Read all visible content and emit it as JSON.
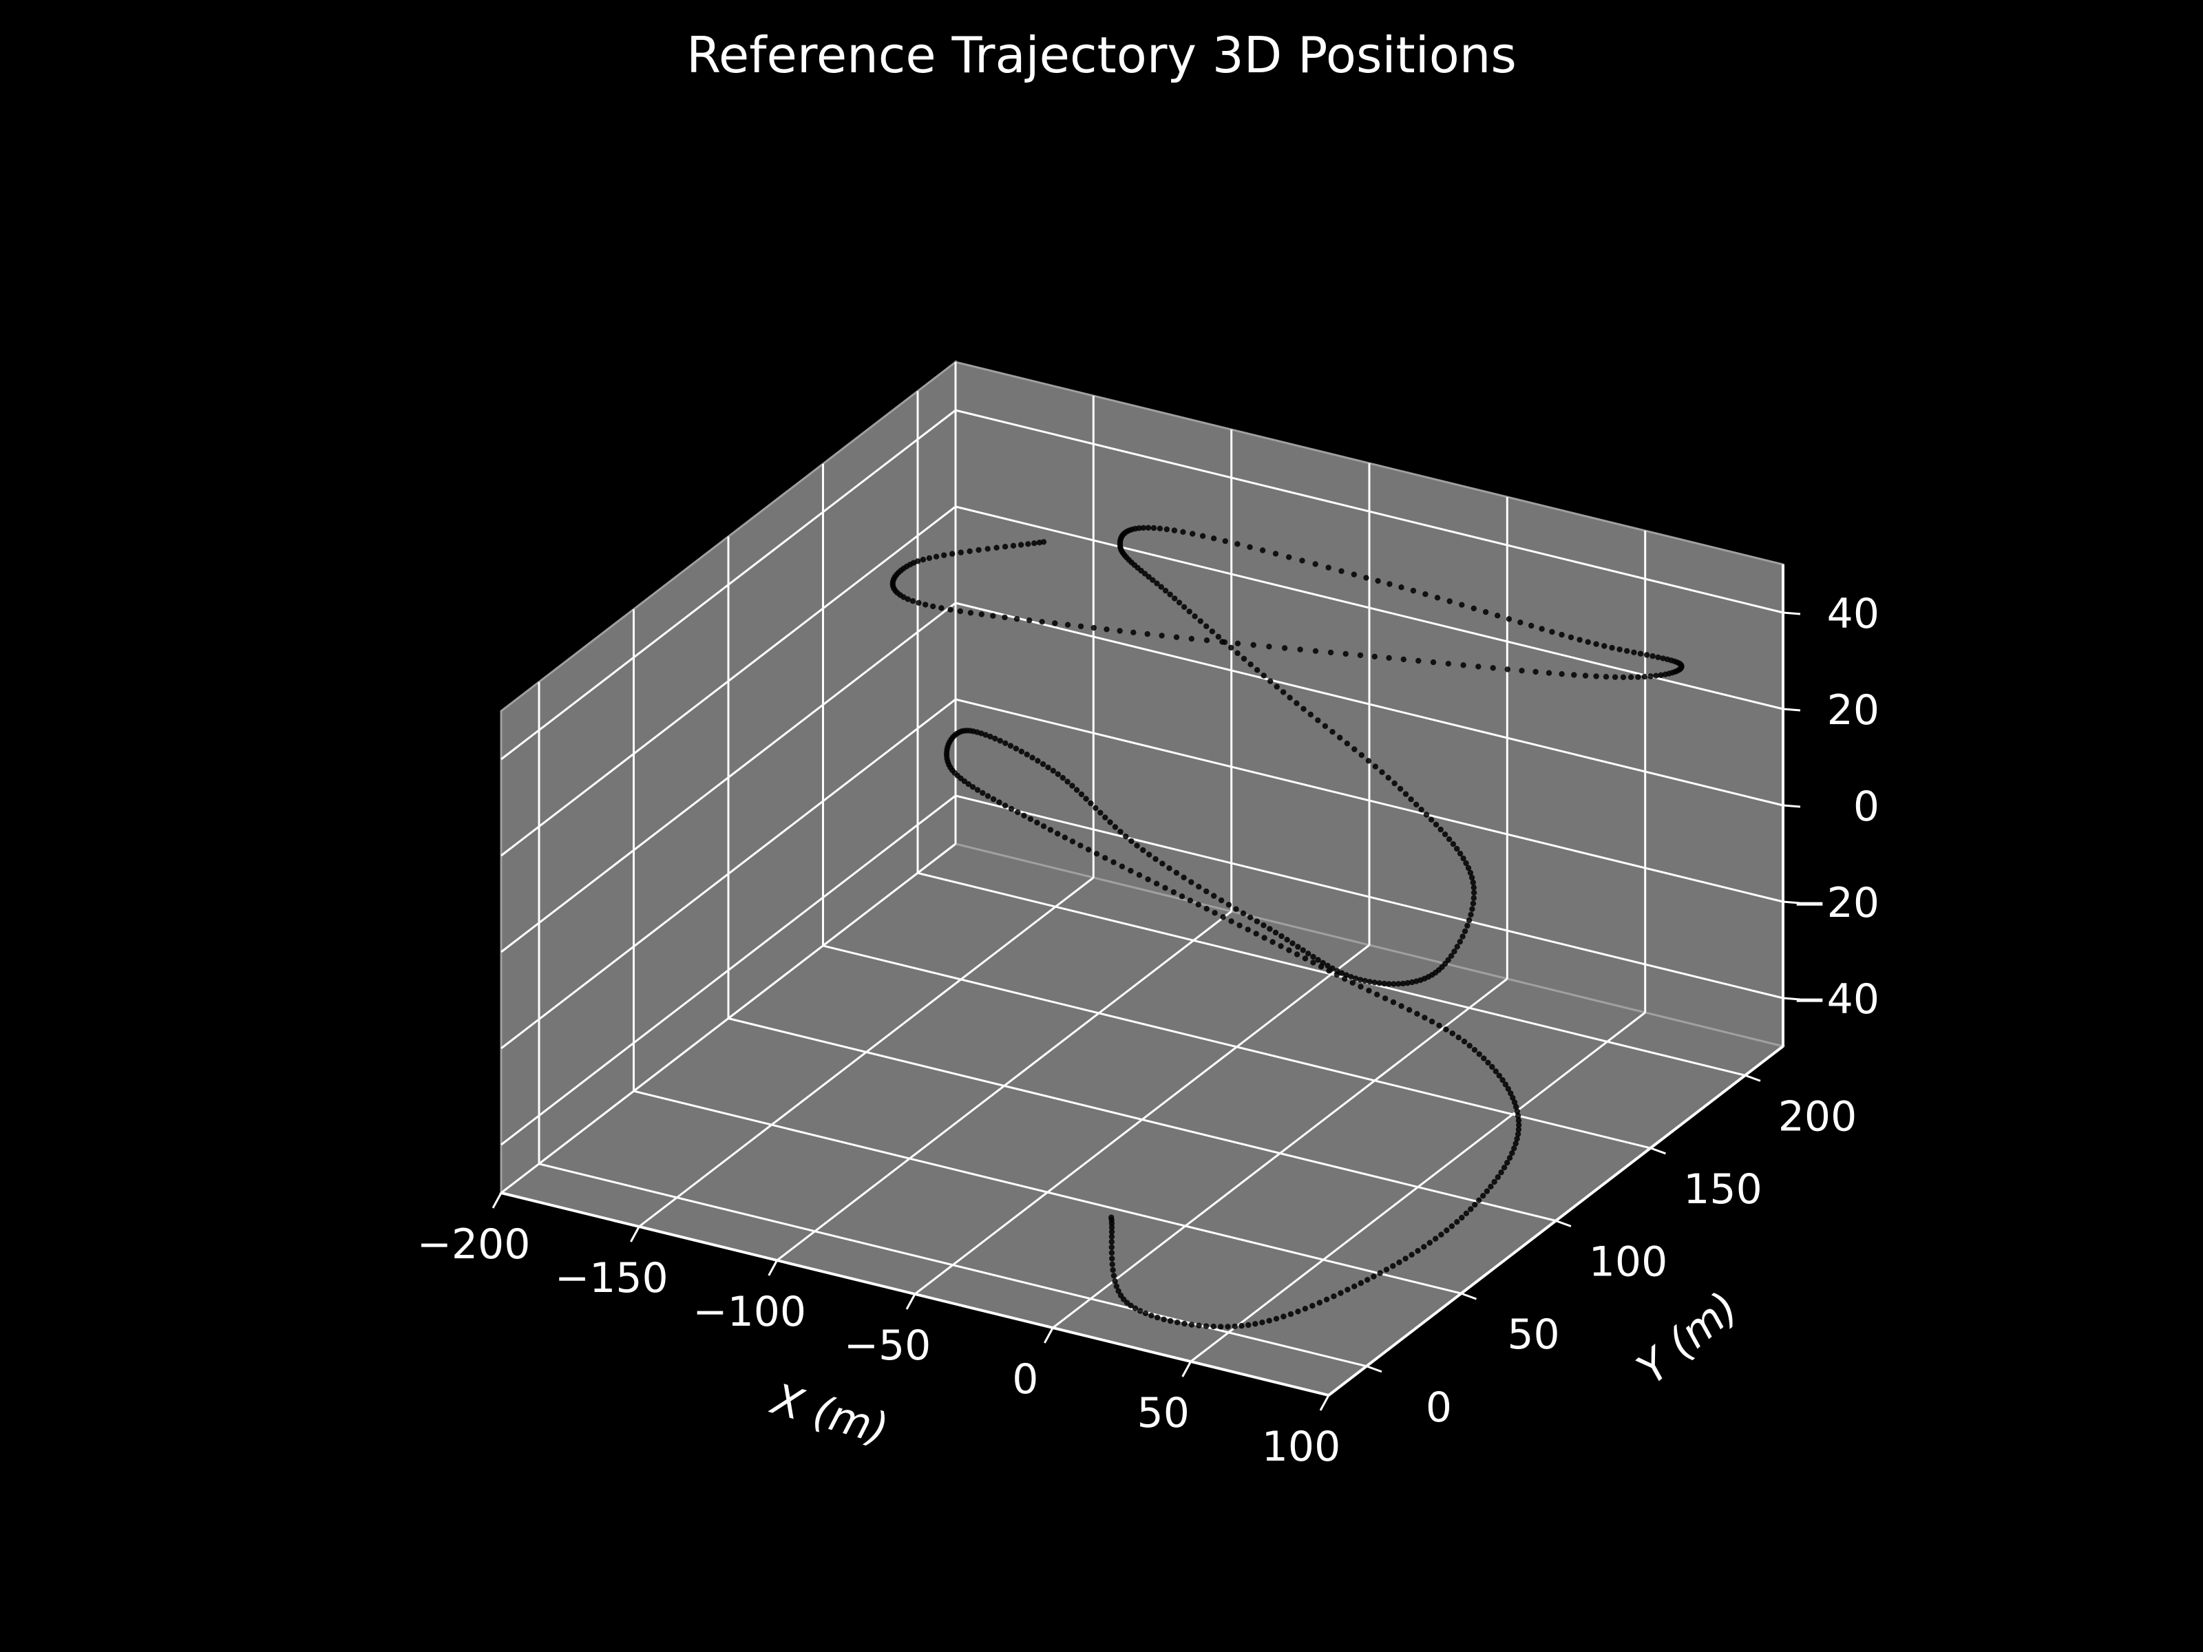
{
  "chart_data": {
    "type": "scatter",
    "projection": "3d",
    "title": "Reference Trajectory 3D Positions",
    "xlabel": "X (m)",
    "ylabel": "Y (m)",
    "zlabel": "",
    "xlim": [
      -200,
      100
    ],
    "ylim": [
      -20,
      220
    ],
    "zlim": [
      -50,
      50
    ],
    "xticks": [
      -200,
      -150,
      -100,
      -50,
      0,
      50,
      100
    ],
    "yticks": [
      0,
      50,
      100,
      150,
      200
    ],
    "zticks": [
      -40,
      -20,
      0,
      20,
      40
    ],
    "x_tick_labels": [
      "−200",
      "−150",
      "−100",
      "−50",
      "0",
      "50",
      "100"
    ],
    "y_tick_labels": [
      "0",
      "50",
      "100",
      "150",
      "200"
    ],
    "z_tick_labels": [
      "−40",
      "−20",
      "0",
      "20",
      "40"
    ],
    "grid": true,
    "pane_color": "#767676",
    "grid_color": "#ffffff",
    "background_color": "#000000",
    "marker_color": "#000000",
    "series": [
      {
        "trajectory_key_points": [
          {
            "x": -20,
            "y": 40,
            "z": -48
          },
          {
            "x": 20,
            "y": -10,
            "z": -45
          },
          {
            "x": 65,
            "y": -15,
            "z": -42
          },
          {
            "x": 90,
            "y": 15,
            "z": -38
          },
          {
            "x": 100,
            "y": 55,
            "z": -34
          },
          {
            "x": 90,
            "y": 95,
            "z": -30
          },
          {
            "x": 55,
            "y": 120,
            "z": -26
          },
          {
            "x": 0,
            "y": 130,
            "z": -22
          },
          {
            "x": -60,
            "y": 140,
            "z": -18
          },
          {
            "x": -120,
            "y": 150,
            "z": -14
          },
          {
            "x": -160,
            "y": 160,
            "z": -11
          },
          {
            "x": -165,
            "y": 175,
            "z": -8
          },
          {
            "x": -120,
            "y": 155,
            "z": -4
          },
          {
            "x": -60,
            "y": 115,
            "z": 0
          },
          {
            "x": 10,
            "y": 80,
            "z": 4
          },
          {
            "x": 60,
            "y": 55,
            "z": 8
          },
          {
            "x": 85,
            "y": 60,
            "z": 12
          },
          {
            "x": 70,
            "y": 100,
            "z": 16
          },
          {
            "x": 25,
            "y": 130,
            "z": 19
          },
          {
            "x": -40,
            "y": 160,
            "z": 22
          },
          {
            "x": -100,
            "y": 190,
            "z": 24
          },
          {
            "x": -130,
            "y": 205,
            "z": 26
          },
          {
            "x": -120,
            "y": 215,
            "z": 28
          },
          {
            "x": -40,
            "y": 210,
            "z": 30
          },
          {
            "x": 40,
            "y": 200,
            "z": 32
          },
          {
            "x": 80,
            "y": 195,
            "z": 34
          },
          {
            "x": 70,
            "y": 175,
            "z": 36
          },
          {
            "x": 0,
            "y": 150,
            "z": 38
          },
          {
            "x": -80,
            "y": 125,
            "z": 40
          },
          {
            "x": -140,
            "y": 110,
            "z": 42
          },
          {
            "x": -150,
            "y": 125,
            "z": 44
          },
          {
            "x": -120,
            "y": 150,
            "z": 45
          }
        ]
      }
    ]
  }
}
